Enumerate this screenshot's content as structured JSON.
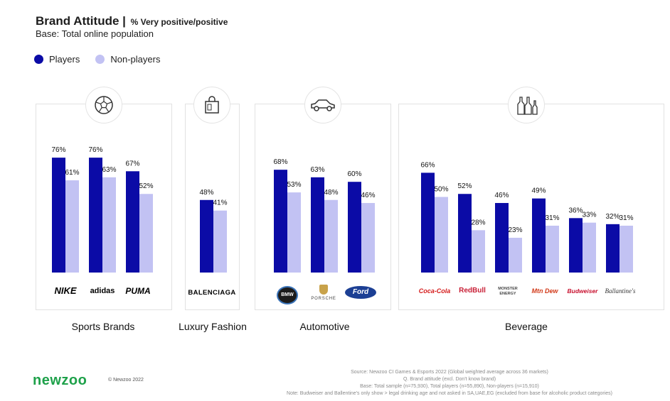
{
  "header": {
    "title": "Brand Attitude |",
    "subtitle": "% Very positive/positive",
    "base": "Base: Total online population"
  },
  "legend": {
    "players": "Players",
    "non_players": "Non-players"
  },
  "colors": {
    "players": "#0b0ba6",
    "non_players": "#c2c2f3"
  },
  "groups": [
    {
      "label": "Sports Brands",
      "icon": "soccer-ball-icon"
    },
    {
      "label": "Luxury Fashion",
      "icon": "shopping-bag-icon"
    },
    {
      "label": "Automotive",
      "icon": "car-icon"
    },
    {
      "label": "Beverage",
      "icon": "bottles-icon"
    }
  ],
  "chart_data": {
    "type": "bar",
    "ylim": [
      0,
      100
    ],
    "categories": [
      "Nike",
      "adidas",
      "Puma",
      "Balenciaga",
      "BMW",
      "Porsche",
      "Ford",
      "Coca-Cola",
      "Red Bull",
      "Monster Energy",
      "Mountain Dew",
      "Budweiser",
      "Ballantine's"
    ],
    "series": [
      {
        "name": "Players",
        "values": [
          76,
          76,
          67,
          48,
          68,
          63,
          60,
          66,
          52,
          46,
          49,
          36,
          32
        ]
      },
      {
        "name": "Non-players",
        "values": [
          61,
          63,
          52,
          41,
          53,
          48,
          46,
          50,
          28,
          23,
          31,
          33,
          31
        ]
      }
    ],
    "value_labels": {
      "players": [
        "76%",
        "76%",
        "67%",
        "48%",
        "68%",
        "63%",
        "60%",
        "66%",
        "52%",
        "46%",
        "49%",
        "36%",
        "32%"
      ],
      "non_players": [
        "61%",
        "63%",
        "52%",
        "41%",
        "53%",
        "48%",
        "46%",
        "50%",
        "28%",
        "23%",
        "31%",
        "33%",
        "31%"
      ]
    }
  },
  "brand_logos": [
    "NIKE",
    "adidas",
    "PUMA",
    "BALENCIAGA",
    "BMW",
    "PORSCHE",
    "Ford",
    "Coca-Cola",
    "RedBull",
    "MONSTER ENERGY",
    "Mtn Dew",
    "Budweiser",
    "Ballantine's"
  ],
  "footer": {
    "logo": "newzoo",
    "copyright": "© Newzoo 2022",
    "source_lines": [
      "Source: Newzoo CI Games & Esports 2022 (Global weighted average across 36 markets)",
      "Q. Brand attitude (excl. Don't know brand)",
      "Base: Total sample (n=75,930), Total players (n=55,890), Non-players (n=15,910)",
      "Note: Budweiser and Ballentine's only show > legal drinking age and not asked in SA,UAE,EG (excluded from base for alcoholic product categories)"
    ]
  }
}
